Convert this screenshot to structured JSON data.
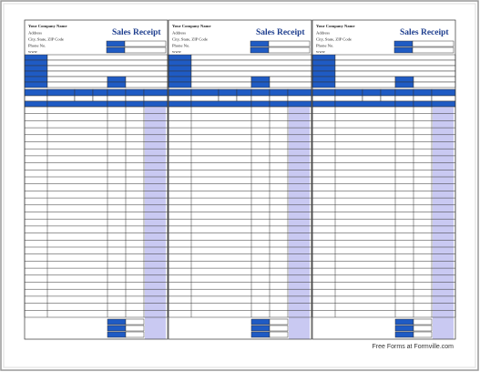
{
  "receipts": [
    {
      "company": "Your Company Name",
      "address": "Address",
      "city": "City, State, ZIP Code",
      "phone": "Phone No.",
      "web": "www",
      "title": "Sales Receipt"
    },
    {
      "company": "Your Company Name",
      "address": "Address",
      "city": "City, State, ZIP Code",
      "phone": "Phone No.",
      "web": "www",
      "title": "Sales Receipt"
    },
    {
      "company": "Your Company Name",
      "address": "Address",
      "city": "City, State, ZIP Code",
      "phone": "Phone No.",
      "web": "www",
      "title": "Sales Receipt"
    }
  ],
  "footer": "Free Forms at Formville.com"
}
